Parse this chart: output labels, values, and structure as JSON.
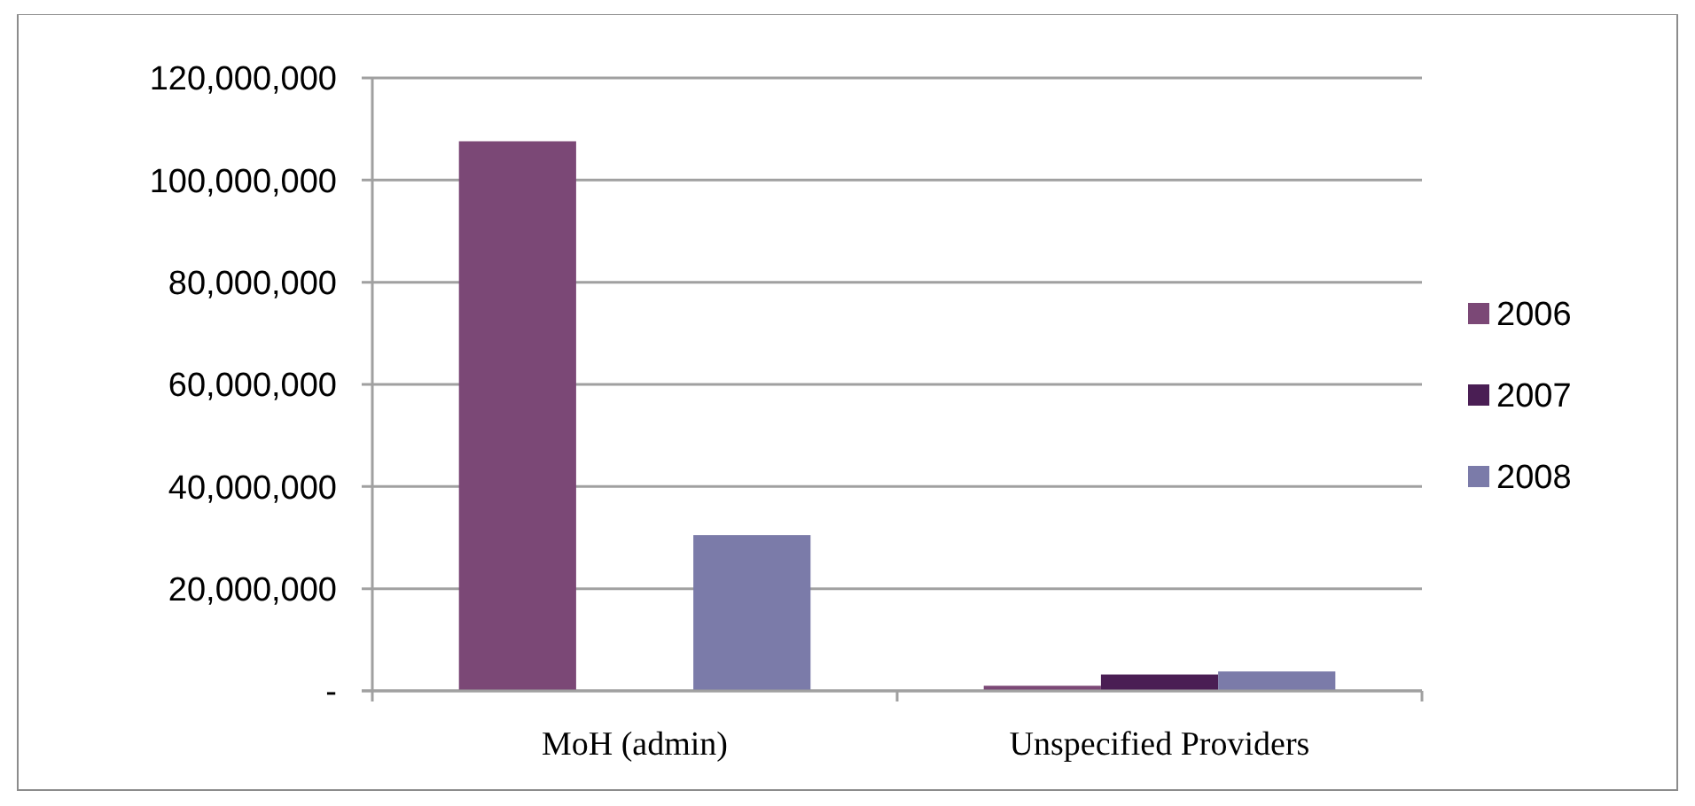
{
  "chart_data": {
    "type": "bar",
    "categories": [
      "MoH (admin)",
      "Unspecified Providers"
    ],
    "series": [
      {
        "name": "2006",
        "color": "#7b4876",
        "values": [
          107600000,
          1000000
        ]
      },
      {
        "name": "2007",
        "color": "#4a1e54",
        "values": [
          0,
          3200000
        ]
      },
      {
        "name": "2008",
        "color": "#7b7ba9",
        "values": [
          30500000,
          3800000
        ]
      }
    ],
    "ylim": [
      0,
      120000000
    ],
    "yticks": [
      {
        "value": 0,
        "label": "-"
      },
      {
        "value": 20000000,
        "label": "20,000,000"
      },
      {
        "value": 40000000,
        "label": "40,000,000"
      },
      {
        "value": 60000000,
        "label": "60,000,000"
      },
      {
        "value": 80000000,
        "label": "80,000,000"
      },
      {
        "value": 100000000,
        "label": "100,000,000"
      },
      {
        "value": 120000000,
        "label": "120,000,000"
      }
    ],
    "grid": "y",
    "legend": "right"
  }
}
